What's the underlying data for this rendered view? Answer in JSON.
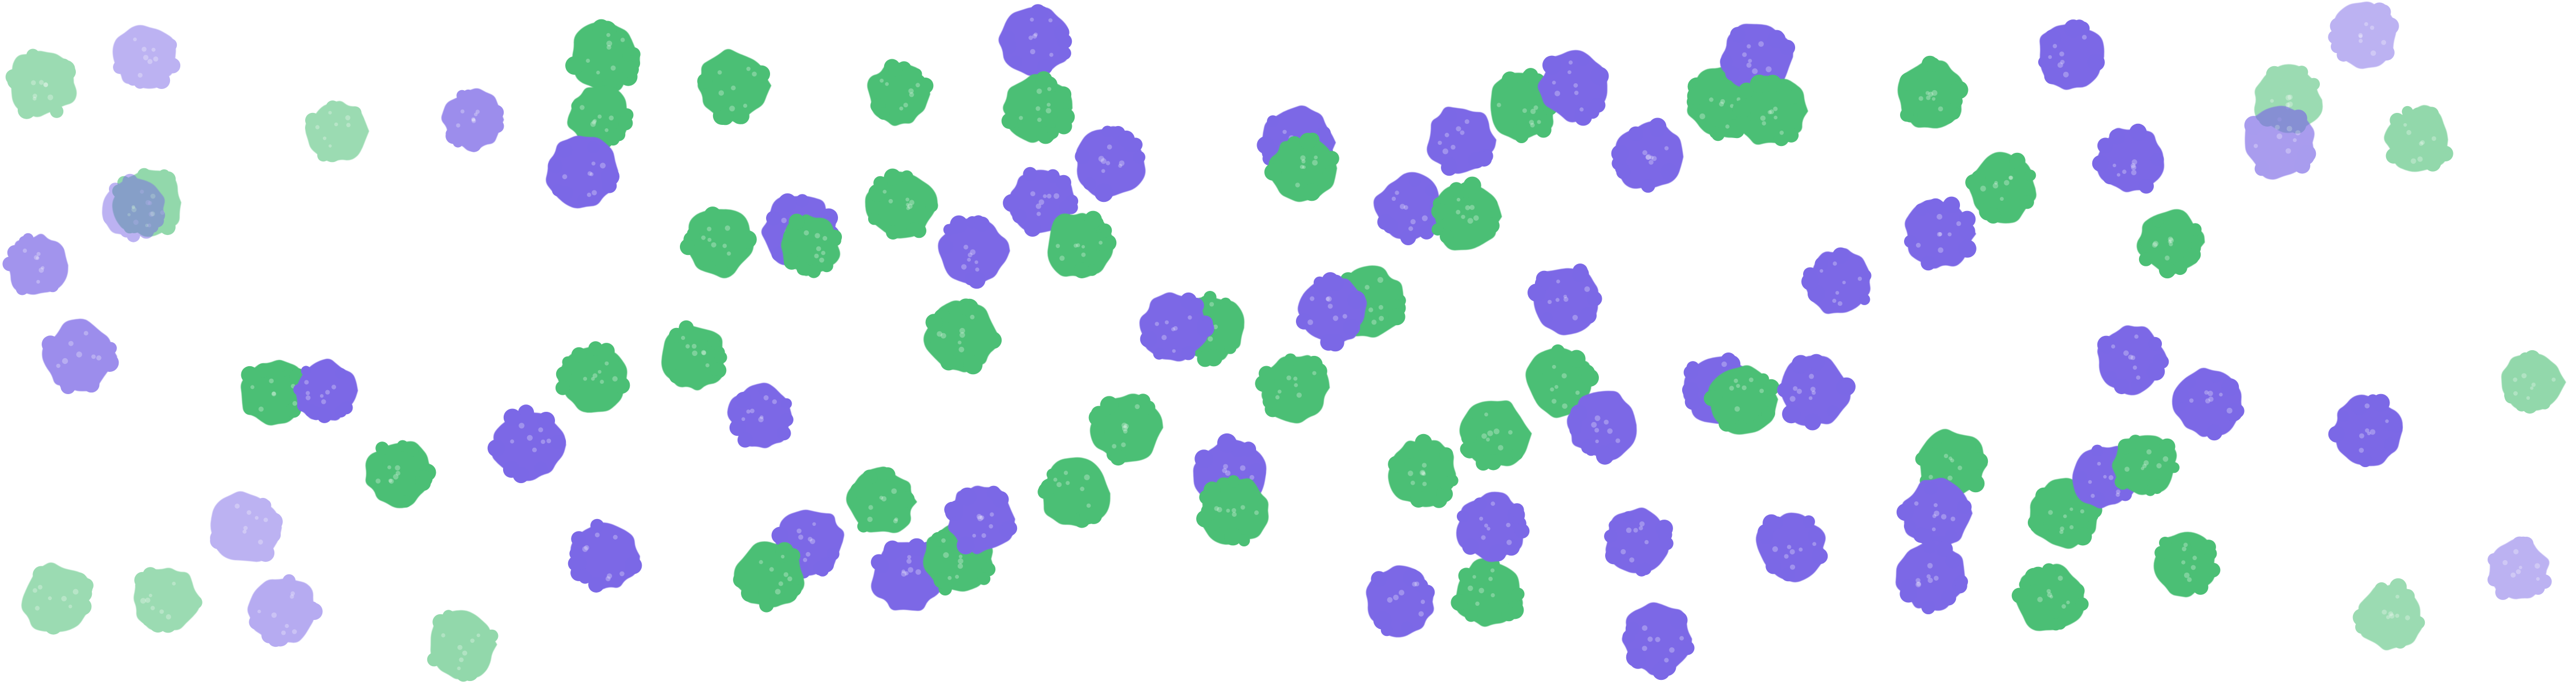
{
  "palette": {
    "green": "#4bbf75",
    "purple": "#7b68e6",
    "background": "#ffffff"
  },
  "legend": []
}
